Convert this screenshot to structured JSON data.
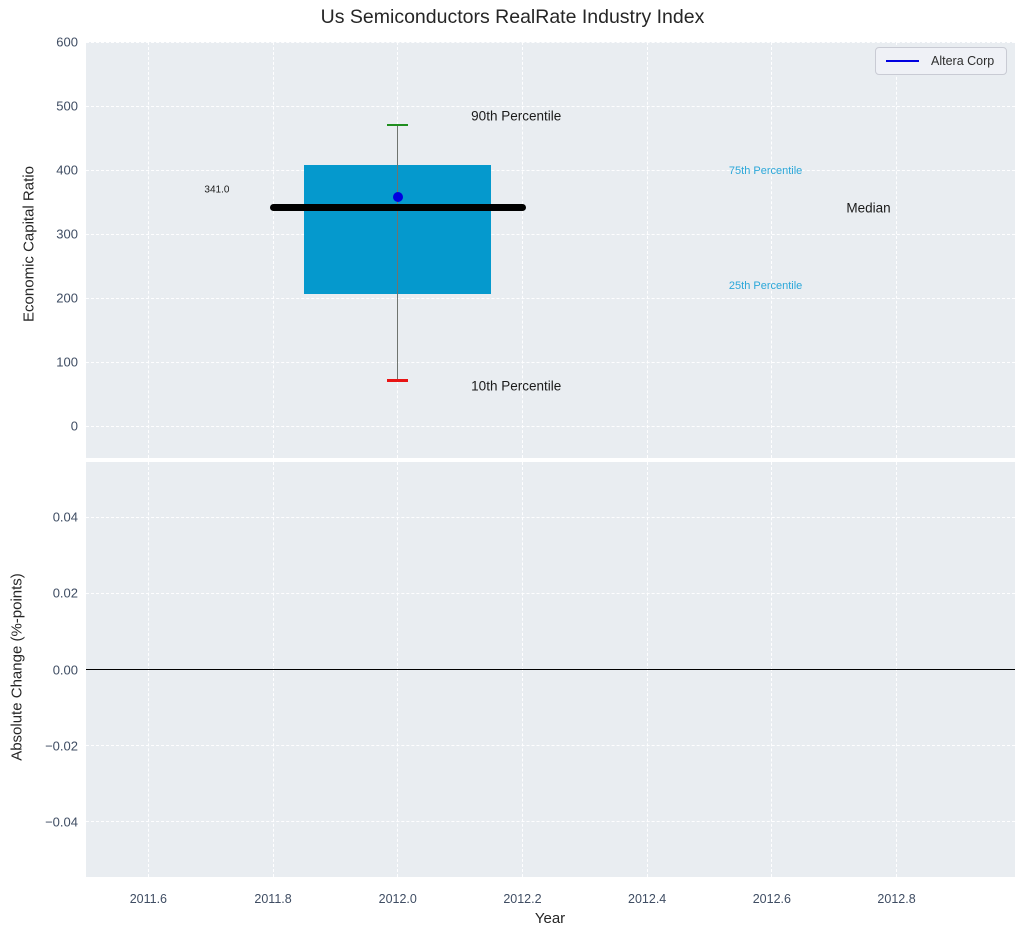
{
  "figure": {
    "title": "Us Semiconductors RealRate Industry Index",
    "xlabel": "Year"
  },
  "colors": {
    "plot_bg": "#e9edf1",
    "grid": "rgba(255,255,255,0.95)",
    "box_fill": "#0599cd",
    "median_line": "#000000",
    "p90_cap": "#1f8e1f",
    "p10_cap": "#e81414",
    "whisker": "#6f746f",
    "company": "#0000e0",
    "tick_label": "#3f4d63",
    "axis_label": "#1a1a1a",
    "percentile_label": "#2ba7d9",
    "zero_line": "#000000"
  },
  "legend": {
    "label": "Altera Corp"
  },
  "chart_data": [
    {
      "type": "box",
      "name": "economic-capital-ratio-panel",
      "title": "Us Semiconductors RealRate Industry Index",
      "ylabel": "Economic Capital Ratio",
      "ylim": [
        -50,
        600
      ],
      "grid": true,
      "legend_entries": [
        "Altera Corp"
      ],
      "yticks": [
        {
          "v": 600,
          "label": "600"
        },
        {
          "v": 500,
          "label": "500"
        },
        {
          "v": 400,
          "label": "400"
        },
        {
          "v": 300,
          "label": "300"
        },
        {
          "v": 200,
          "label": "200"
        },
        {
          "v": 100,
          "label": "100"
        },
        {
          "v": 0,
          "label": "0"
        }
      ],
      "box": {
        "x": 2012.0,
        "p90": 470,
        "p75": 408,
        "median": 341,
        "p25": 207,
        "p10": 71,
        "median_label": "341.0",
        "box_halfwidth_years": 0.15,
        "median_halfwidth_years": 0.205,
        "cap_halfwidth_years": 0.017
      },
      "company_point": {
        "label": "Altera Corp",
        "x": 2012.0,
        "value": 358
      },
      "annotations": [
        {
          "text": "90th Percentile",
          "x": 2012.19,
          "y": 485,
          "color_key": "axis_label",
          "size": 13.5
        },
        {
          "text": "75th Percentile",
          "x": 2012.59,
          "y": 399,
          "color_key": "percentile_label",
          "size": 11
        },
        {
          "text": "Median",
          "x": 2012.755,
          "y": 341,
          "color_key": "axis_label",
          "size": 13.5
        },
        {
          "text": "25th Percentile",
          "x": 2012.59,
          "y": 218,
          "color_key": "percentile_label",
          "size": 11
        },
        {
          "text": "10th Percentile",
          "x": 2012.19,
          "y": 62,
          "color_key": "axis_label",
          "size": 13.5
        },
        {
          "text": "341.0",
          "x": 2011.71,
          "y": 369,
          "color_key": "axis_label",
          "size": 10
        }
      ]
    },
    {
      "type": "line",
      "name": "absolute-change-panel",
      "ylabel": "Absolute Change (%-points)",
      "xlabel": "Year",
      "ylim": [
        -0.0545,
        0.0545
      ],
      "xlim": [
        2011.5,
        2012.99
      ],
      "grid": true,
      "zero_line": 0,
      "series": [],
      "yticks": [
        {
          "v": 0.04,
          "label": "0.04"
        },
        {
          "v": 0.02,
          "label": "0.02"
        },
        {
          "v": 0,
          "label": "0.00"
        },
        {
          "v": -0.02,
          "label": "−0.02"
        },
        {
          "v": -0.04,
          "label": "−0.04"
        }
      ],
      "xticks": [
        {
          "v": 2011.6,
          "label": "2011.6"
        },
        {
          "v": 2011.8,
          "label": "2011.8"
        },
        {
          "v": 2012.0,
          "label": "2012.0"
        },
        {
          "v": 2012.2,
          "label": "2012.2"
        },
        {
          "v": 2012.4,
          "label": "2012.4"
        },
        {
          "v": 2012.6,
          "label": "2012.6"
        },
        {
          "v": 2012.8,
          "label": "2012.8"
        }
      ]
    }
  ]
}
